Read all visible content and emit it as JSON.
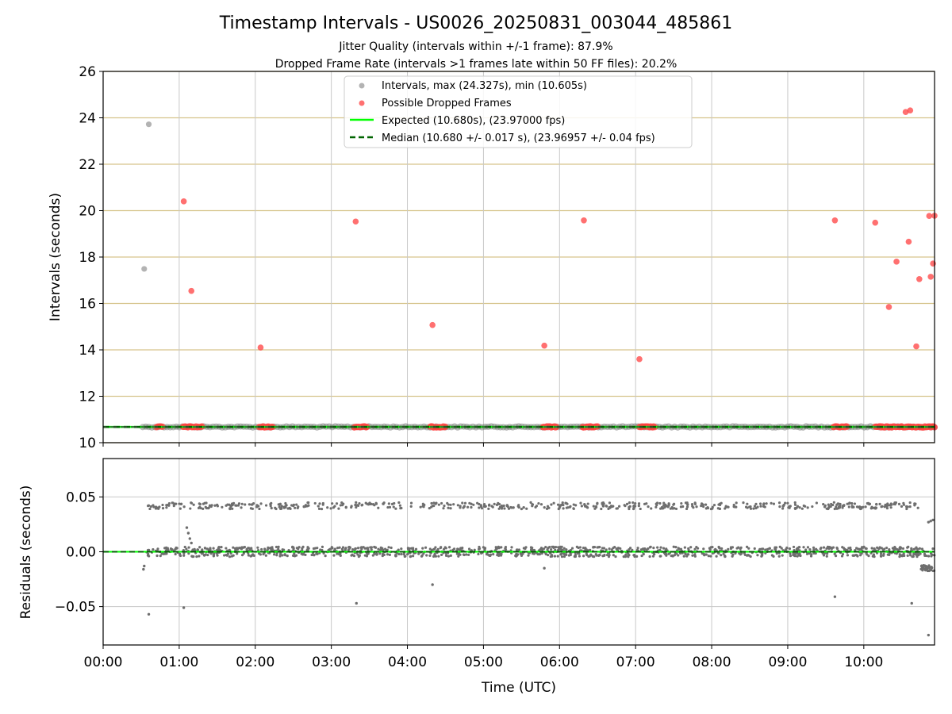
{
  "chart_data": {
    "type": "scatter",
    "title": "Timestamp Intervals - US0026_20250831_003044_485861",
    "subtitle_1": "Jitter Quality (intervals within +/-1 frame): 87.9%",
    "subtitle_2": "Dropped Frame Rate (intervals >1 frames late within 50 FF files): 20.2%",
    "xlabel": "Time (UTC)",
    "x_ticks": [
      "00:00",
      "01:00",
      "02:00",
      "03:00",
      "04:00",
      "05:00",
      "06:00",
      "07:00",
      "08:00",
      "09:00",
      "10:00"
    ],
    "xlim_hours": [
      0,
      10.93
    ],
    "top_panel": {
      "ylabel": "Intervals (seconds)",
      "ylim": [
        10,
        26
      ],
      "y_ticks": [
        "10",
        "12",
        "14",
        "16",
        "18",
        "20",
        "22",
        "24",
        "26"
      ],
      "grid_x": true,
      "grid_y_color": "#d6c48c",
      "legend_position": "upper-center",
      "legend": {
        "intervals": "Intervals, max (24.327s), min (10.605s)",
        "dropped": "Possible Dropped Frames",
        "expected": "Expected (10.680s), (23.97000 fps)",
        "median": "Median (10.680 +/- 0.017 s), (23.96957 +/- 0.04 fps)"
      },
      "expected_value": 10.68,
      "median_value": 10.68,
      "band_start_hour": 0.52,
      "gray_outliers": [
        {
          "hour": 0.6,
          "seconds": 23.72
        },
        {
          "hour": 0.54,
          "seconds": 17.49
        }
      ],
      "dropped_frames": [
        {
          "hour": 1.06,
          "seconds": 20.4
        },
        {
          "hour": 1.16,
          "seconds": 16.54
        },
        {
          "hour": 2.07,
          "seconds": 14.1
        },
        {
          "hour": 3.32,
          "seconds": 19.53
        },
        {
          "hour": 4.33,
          "seconds": 15.07
        },
        {
          "hour": 5.8,
          "seconds": 14.18
        },
        {
          "hour": 6.32,
          "seconds": 19.58
        },
        {
          "hour": 7.05,
          "seconds": 13.6
        },
        {
          "hour": 9.62,
          "seconds": 19.58
        },
        {
          "hour": 10.15,
          "seconds": 19.48
        },
        {
          "hour": 10.33,
          "seconds": 15.85
        },
        {
          "hour": 10.43,
          "seconds": 17.8
        },
        {
          "hour": 10.55,
          "seconds": 24.25
        },
        {
          "hour": 10.61,
          "seconds": 24.32
        },
        {
          "hour": 10.59,
          "seconds": 18.66
        },
        {
          "hour": 10.69,
          "seconds": 14.15
        },
        {
          "hour": 10.73,
          "seconds": 17.05
        },
        {
          "hour": 10.86,
          "seconds": 19.77
        },
        {
          "hour": 10.88,
          "seconds": 17.15
        },
        {
          "hour": 10.91,
          "seconds": 17.72
        },
        {
          "hour": 10.93,
          "seconds": 19.78
        }
      ],
      "dropped_clusters_on_band": [
        [
          0.7,
          0.78
        ],
        [
          1.05,
          1.3
        ],
        [
          2.05,
          2.23
        ],
        [
          3.3,
          3.47
        ],
        [
          4.3,
          4.5
        ],
        [
          5.78,
          5.96
        ],
        [
          6.3,
          6.5
        ],
        [
          7.05,
          7.25
        ],
        [
          9.6,
          9.78
        ],
        [
          10.15,
          10.93
        ]
      ]
    },
    "bottom_panel": {
      "ylabel": "Residuals (seconds)",
      "ylim": [
        -0.085,
        0.085
      ],
      "y_ticks": [
        "−0.05",
        "0.00",
        "0.05"
      ],
      "y_tick_values": [
        -0.05,
        0,
        0.05
      ],
      "grid": true,
      "upper_band_residual": 0.042,
      "main_band_residual": 0.0,
      "isolated_points": [
        {
          "hour": 0.6,
          "residual": -0.057
        },
        {
          "hour": 1.06,
          "residual": -0.051
        },
        {
          "hour": 3.33,
          "residual": -0.047
        },
        {
          "hour": 4.33,
          "residual": -0.03
        },
        {
          "hour": 5.8,
          "residual": -0.015
        },
        {
          "hour": 9.62,
          "residual": -0.041
        },
        {
          "hour": 10.63,
          "residual": -0.047
        },
        {
          "hour": 10.85,
          "residual": -0.076
        },
        {
          "hour": 0.53,
          "residual": -0.016
        },
        {
          "hour": 0.54,
          "residual": -0.013
        },
        {
          "hour": 1.1,
          "residual": 0.022
        },
        {
          "hour": 1.12,
          "residual": 0.017
        },
        {
          "hour": 1.14,
          "residual": 0.012
        },
        {
          "hour": 1.16,
          "residual": 0.008
        },
        {
          "hour": 10.85,
          "residual": 0.027
        },
        {
          "hour": 10.88,
          "residual": 0.028
        },
        {
          "hour": 10.91,
          "residual": 0.029
        }
      ]
    },
    "colors": {
      "gray_points": "#808080",
      "dropped_points": "#ff4040",
      "expected_line": "#00ff00",
      "median_line": "#006400",
      "axis": "#000000",
      "grid_gray": "#c8c8c8"
    }
  }
}
